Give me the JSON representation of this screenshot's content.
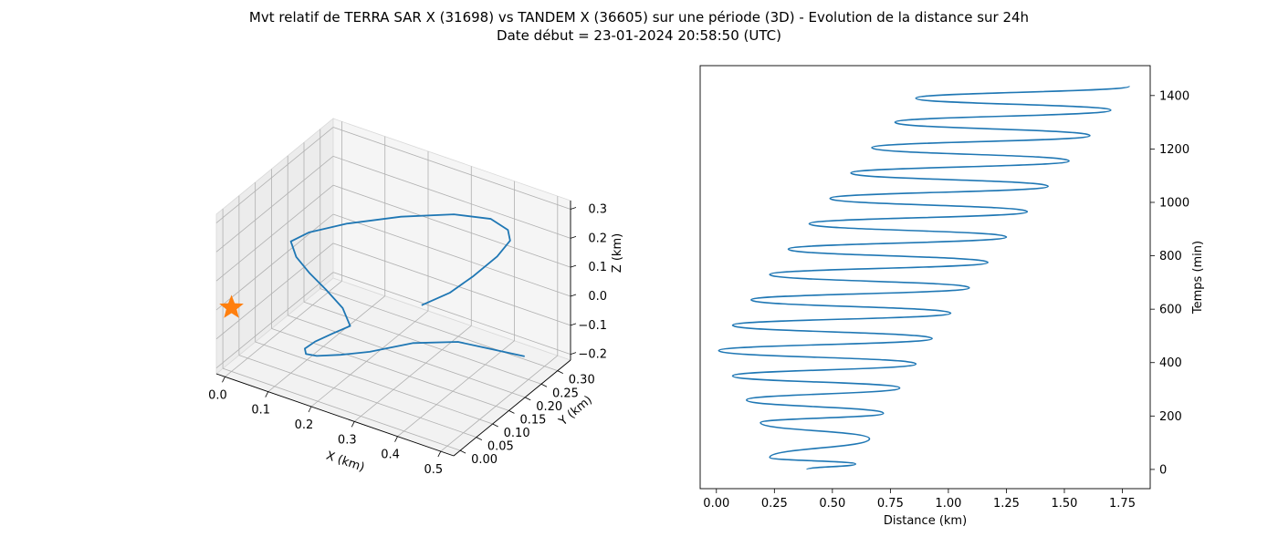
{
  "figure": {
    "title_line1": "Mvt relatif de TERRA SAR X (31698) vs TANDEM X (36605) sur une période (3D) - Evolution de la distance sur 24h",
    "title_line2": "Date début = 23-01-2024 20:58:50 (UTC)"
  },
  "chart_data": [
    {
      "type": "line3d",
      "title": "",
      "xlabel": "X (km)",
      "ylabel": "Y (km)",
      "zlabel": "Z (km)",
      "x_ticks": [
        "0.0",
        "0.1",
        "0.2",
        "0.3",
        "0.4",
        "0.5"
      ],
      "y_ticks": [
        "0.00",
        "0.05",
        "0.10",
        "0.15",
        "0.20",
        "0.25",
        "0.30"
      ],
      "z_ticks": [
        "−0.2",
        "−0.1",
        "0.0",
        "0.1",
        "0.2",
        "0.3"
      ],
      "xlim": [
        -0.02,
        0.53
      ],
      "ylim": [
        -0.02,
        0.34
      ],
      "zlim": [
        -0.22,
        0.33
      ],
      "grid": true,
      "series": [
        {
          "color": "#1f77b4",
          "points": [
            [
              0.465,
              0.285,
              -0.19
            ],
            [
              0.322,
              0.27,
              -0.2
            ],
            [
              0.262,
              0.21,
              -0.18
            ],
            [
              0.215,
              0.14,
              -0.17
            ],
            [
              0.185,
              0.09,
              -0.15
            ],
            [
              0.16,
              0.05,
              -0.13
            ],
            [
              0.15,
              0.03,
              -0.11
            ],
            [
              0.155,
              0.02,
              -0.08
            ],
            [
              0.175,
              0.025,
              -0.05
            ],
            [
              0.205,
              0.04,
              -0.02
            ],
            [
              0.23,
              0.06,
              0.0
            ],
            [
              0.205,
              0.07,
              0.04
            ],
            [
              0.17,
              0.065,
              0.09
            ],
            [
              0.14,
              0.055,
              0.14
            ],
            [
              0.12,
              0.04,
              0.2
            ],
            [
              0.115,
              0.03,
              0.26
            ],
            [
              0.15,
              0.04,
              0.3
            ],
            [
              0.2,
              0.09,
              0.31
            ],
            [
              0.28,
              0.15,
              0.32
            ],
            [
              0.35,
              0.22,
              0.3
            ],
            [
              0.39,
              0.28,
              0.25
            ],
            [
              0.4,
              0.32,
              0.18
            ],
            [
              0.39,
              0.34,
              0.12
            ],
            [
              0.36,
              0.34,
              0.05
            ],
            [
              0.32,
              0.32,
              -0.02
            ],
            [
              0.28,
              0.3,
              -0.08
            ],
            [
              0.23,
              0.28,
              -0.13
            ]
          ]
        },
        {
          "marker": "star",
          "color": "#ff7f0e",
          "points": [
            [
              0.0,
              0.0,
              0.0
            ]
          ]
        }
      ]
    },
    {
      "type": "line",
      "title": "",
      "xlabel": "Distance (km)",
      "ylabel": "Temps (min)",
      "xlim": [
        -0.07,
        1.87
      ],
      "ylim": [
        -72,
        1512
      ],
      "x_ticks": [
        "0.00",
        "0.25",
        "0.50",
        "0.75",
        "1.00",
        "1.25",
        "1.50",
        "1.75"
      ],
      "x_tick_values": [
        0,
        0.25,
        0.5,
        0.75,
        1.0,
        1.25,
        1.5,
        1.75
      ],
      "y_ticks": [
        "0",
        "200",
        "400",
        "600",
        "800",
        "1000",
        "1200",
        "1400"
      ],
      "y_tick_values": [
        0,
        200,
        400,
        600,
        800,
        1000,
        1200,
        1400
      ],
      "yaxis_position": "right",
      "grid": false,
      "series": [
        {
          "color": "#1f77b4",
          "x": [
            0.39,
            0.6,
            0.23,
            0.66,
            0.19,
            0.72,
            0.13,
            0.79,
            0.07,
            0.86,
            0.01,
            0.93,
            0.07,
            1.01,
            0.15,
            1.09,
            0.23,
            1.17,
            0.31,
            1.25,
            0.4,
            1.34,
            0.49,
            1.43,
            0.58,
            1.52,
            0.67,
            1.61,
            0.77,
            1.7,
            0.86,
            1.78
          ],
          "y": [
            0,
            20,
            45,
            115,
            175,
            210,
            260,
            305,
            350,
            395,
            445,
            490,
            540,
            585,
            635,
            680,
            730,
            775,
            825,
            870,
            920,
            965,
            1015,
            1060,
            1110,
            1155,
            1205,
            1250,
            1300,
            1345,
            1390,
            1435
          ]
        }
      ]
    }
  ]
}
